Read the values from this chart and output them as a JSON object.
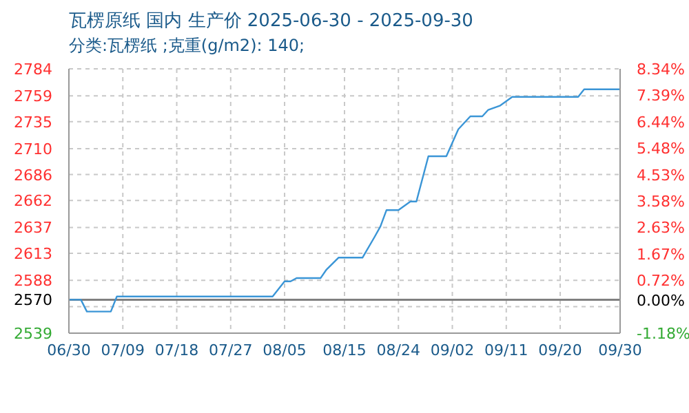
{
  "chart_data": {
    "type": "line",
    "title": "瓦楞原纸 国内 生产价 2025-06-30 - 2025-09-30",
    "subtitle": "分类:瓦楞纸 ;克重(g/m2): 140;",
    "x": [
      "2025-06-30",
      "2025-07-02",
      "2025-07-03",
      "2025-07-07",
      "2025-07-08",
      "2025-08-03",
      "2025-08-05",
      "2025-08-06",
      "2025-08-07",
      "2025-08-11",
      "2025-08-12",
      "2025-08-14",
      "2025-08-18",
      "2025-08-20",
      "2025-08-21",
      "2025-08-22",
      "2025-08-24",
      "2025-08-26",
      "2025-08-27",
      "2025-08-29",
      "2025-09-01",
      "2025-09-03",
      "2025-09-05",
      "2025-09-07",
      "2025-09-08",
      "2025-09-10",
      "2025-09-12",
      "2025-09-23",
      "2025-09-24",
      "2025-09-30"
    ],
    "series": [
      {
        "color": "#3a95d6",
        "values": [
          2570,
          2570,
          2559,
          2559,
          2573,
          2573,
          2587,
          2587,
          2590,
          2590,
          2598,
          2609,
          2609,
          2628,
          2638,
          2653,
          2653,
          2661,
          2661,
          2703,
          2703,
          2728,
          2740,
          2740,
          2746,
          2750,
          2758,
          2758,
          2765,
          2765
        ]
      }
    ],
    "xlim": [
      "2025-06-30",
      "2025-09-30"
    ],
    "xticks": [
      {
        "value": "2025-06-30",
        "label": "06/30"
      },
      {
        "value": "2025-07-09",
        "label": "07/09"
      },
      {
        "value": "2025-07-18",
        "label": "07/18"
      },
      {
        "value": "2025-07-27",
        "label": "07/27"
      },
      {
        "value": "2025-08-05",
        "label": "08/05"
      },
      {
        "value": "2025-08-15",
        "label": "08/15"
      },
      {
        "value": "2025-08-24",
        "label": "08/24"
      },
      {
        "value": "2025-09-02",
        "label": "09/02"
      },
      {
        "value": "2025-09-11",
        "label": "09/11"
      },
      {
        "value": "2025-09-20",
        "label": "09/20"
      },
      {
        "value": "2025-09-30",
        "label": "09/30"
      }
    ],
    "ylim": [
      2539,
      2784
    ],
    "yticks": [
      2539,
      {
        "value": 2563.5,
        "label": null
      },
      2570,
      2588,
      2613,
      2637,
      2662,
      2686,
      2710,
      2735,
      2759,
      2784
    ],
    "y2lim": [
      -1.18,
      8.34
    ],
    "y2ticks": [
      {
        "value": -1.18,
        "label": "-1.18%"
      },
      {
        "value": 0,
        "label": "0.00%"
      },
      {
        "value": 0.72,
        "label": "0.72%"
      },
      {
        "value": 1.67,
        "label": "1.67%"
      },
      {
        "value": 2.63,
        "label": "2.63%"
      },
      {
        "value": 3.58,
        "label": "3.58%"
      },
      {
        "value": 4.53,
        "label": "4.53%"
      },
      {
        "value": 5.48,
        "label": "5.48%"
      },
      {
        "value": 6.44,
        "label": "6.44%"
      },
      {
        "value": 7.39,
        "label": "7.39%"
      },
      {
        "value": 8.34,
        "label": "8.34%"
      }
    ],
    "ref_lines": [
      {
        "axis": "y",
        "value": 2570,
        "color": "#808080"
      }
    ],
    "grid": true,
    "marker": "none",
    "line_style": "solid"
  }
}
